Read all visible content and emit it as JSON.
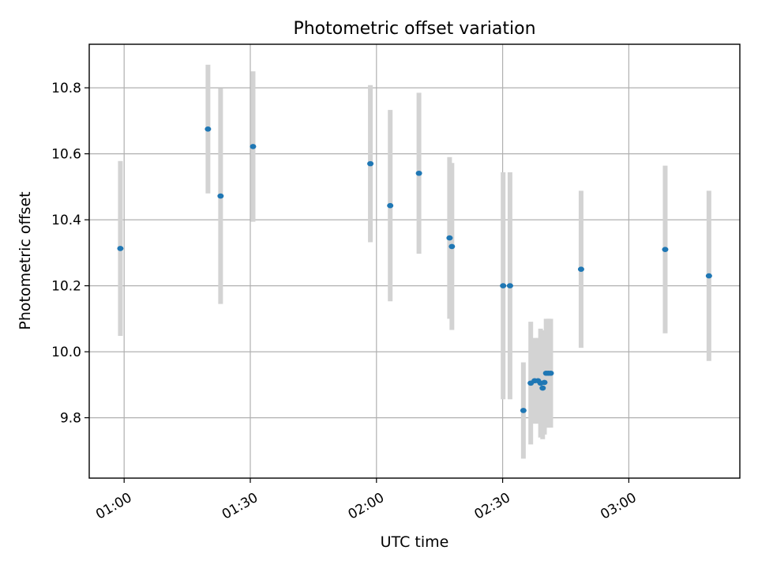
{
  "chart_data": {
    "type": "scatter",
    "title": "Photometric offset variation",
    "xlabel": "UTC time",
    "ylabel": "Photometric offset",
    "xlim": [
      "00:51:42",
      "03:26:24"
    ],
    "ylim": [
      9.617,
      10.932
    ],
    "grid": true,
    "x_ticks": [
      "01:00",
      "01:30",
      "02:00",
      "02:30",
      "03:00"
    ],
    "y_ticks": [
      9.8,
      10.0,
      10.2,
      10.4,
      10.6,
      10.8
    ],
    "y_tick_labels": [
      "9.8",
      "10.0",
      "10.2",
      "10.4",
      "10.6",
      "10.8"
    ],
    "colors": {
      "point": "#1f77b4",
      "errorbar": "#d3d3d3"
    },
    "series": [
      {
        "points": [
          {
            "x": "00:59:06",
            "y": 10.313,
            "err": 0.265
          },
          {
            "x": "01:19:56",
            "y": 10.675,
            "err": 0.195
          },
          {
            "x": "01:22:56",
            "y": 10.472,
            "err": 0.327
          },
          {
            "x": "01:30:39",
            "y": 10.622,
            "err": 0.228
          },
          {
            "x": "01:58:33",
            "y": 10.57,
            "err": 0.238
          },
          {
            "x": "02:03:16",
            "y": 10.443,
            "err": 0.29
          },
          {
            "x": "02:10:06",
            "y": 10.541,
            "err": 0.244
          },
          {
            "x": "02:17:23",
            "y": 10.345,
            "err": 0.245
          },
          {
            "x": "02:17:56",
            "y": 10.319,
            "err": 0.253
          },
          {
            "x": "02:30:07",
            "y": 10.2,
            "err": 0.344
          },
          {
            "x": "02:31:45",
            "y": 10.2,
            "err": 0.344
          },
          {
            "x": "02:34:56",
            "y": 9.822,
            "err": 0.146
          },
          {
            "x": "02:36:41",
            "y": 9.905,
            "err": 0.186
          },
          {
            "x": "02:37:36",
            "y": 9.912,
            "err": 0.13
          },
          {
            "x": "02:38:25",
            "y": 9.912,
            "err": 0.13
          },
          {
            "x": "02:39:01",
            "y": 9.905,
            "err": 0.165
          },
          {
            "x": "02:39:31",
            "y": 9.89,
            "err": 0.155
          },
          {
            "x": "02:39:56",
            "y": 9.907,
            "err": 0.158
          },
          {
            "x": "02:40:21",
            "y": 9.935,
            "err": 0.165
          },
          {
            "x": "02:40:52",
            "y": 9.935,
            "err": 0.165
          },
          {
            "x": "02:41:26",
            "y": 9.935,
            "err": 0.165
          },
          {
            "x": "02:48:39",
            "y": 10.25,
            "err": 0.238
          },
          {
            "x": "03:08:39",
            "y": 10.31,
            "err": 0.254
          },
          {
            "x": "03:19:03",
            "y": 10.23,
            "err": 0.258
          }
        ]
      }
    ]
  }
}
